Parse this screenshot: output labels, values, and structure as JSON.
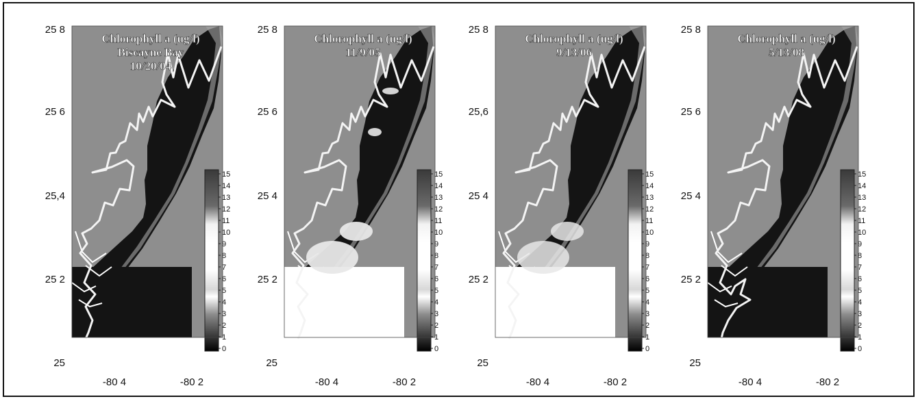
{
  "panels": [
    {
      "title_lines": [
        "Chlorophyll a (ug/l)",
        "Biscayne Bay",
        "10/20/04"
      ],
      "plume": "none"
    },
    {
      "title_lines": [
        "Chlorophyll a (ug/l)",
        "11/9/05"
      ],
      "plume": "strong"
    },
    {
      "title_lines": [
        "Chlorophyll a (ug/l)",
        "9/13/06"
      ],
      "plume": "medium"
    },
    {
      "title_lines": [
        "Chlorophyll a (ug/l)",
        "5/13/08"
      ],
      "plume": "none"
    }
  ],
  "y_ticks": [
    "25 8",
    "25 6",
    "25.4",
    "25 2",
    "25"
  ],
  "y_ticks_by_panel": [
    [
      "25 8",
      "25 6",
      "25,4",
      "25 2",
      "25"
    ],
    [
      "25 8",
      "25 6",
      "25 4",
      "25 2",
      "25"
    ],
    [
      "25 8",
      "25,6",
      "25 4",
      "25 2",
      "25"
    ],
    [
      "25 8",
      "25 6",
      "25 4",
      "25 2",
      "25"
    ]
  ],
  "x_ticks": [
    "-80 4",
    "-80 2"
  ],
  "colorbar_ticks": [
    "15",
    "14",
    "13",
    "12",
    "11",
    "10",
    "9",
    "8",
    "7",
    "6",
    "5",
    "4",
    "3",
    "2",
    "1",
    "0"
  ],
  "colors": {
    "land": "#8e8e8e",
    "water": "#141414",
    "track": "#f4f4f4",
    "plume": "#e8e8e8",
    "frame": "#111111"
  }
}
